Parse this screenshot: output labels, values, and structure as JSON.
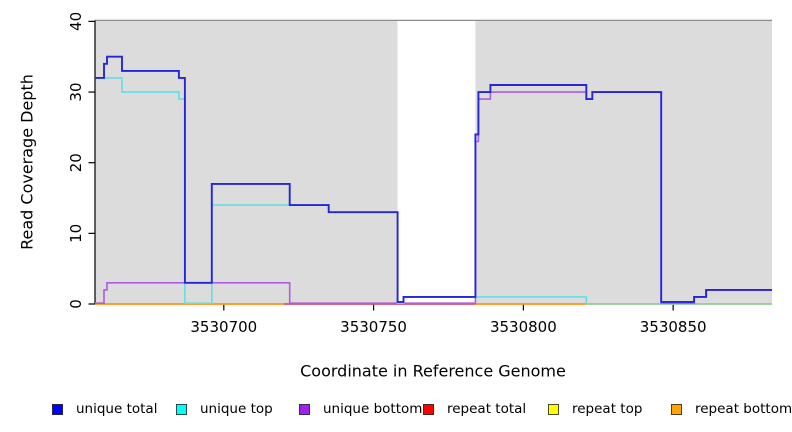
{
  "chart_data": {
    "type": "line",
    "subtype": "step-coverage",
    "title": "",
    "xlabel": "Coordinate in Reference Genome",
    "ylabel": "Read Coverage Depth",
    "x_domain": [
      3530657,
      3530883
    ],
    "y_domain": [
      0,
      40
    ],
    "x_ticks": [
      3530700,
      3530750,
      3530800,
      3530850
    ],
    "y_ticks": [
      0,
      10,
      20,
      30,
      40
    ],
    "grid": false,
    "background_shading": {
      "color": "#dcdcdc",
      "top_border_color": "#8c8c8c",
      "regions": [
        [
          3530657,
          3530758
        ],
        [
          3530784,
          3530883
        ]
      ],
      "gap_note": "white unshaded gap from 3530758 to 3530784"
    },
    "series": [
      {
        "id": "unique_total",
        "name": "unique total",
        "legend_color": "#0000ff",
        "line_color": "#2626d9",
        "points": [
          [
            3530657,
            32
          ],
          [
            3530660,
            34
          ],
          [
            3530661,
            35
          ],
          [
            3530666,
            33
          ],
          [
            3530685,
            32
          ],
          [
            3530687,
            3
          ],
          [
            3530696,
            17
          ],
          [
            3530722,
            14
          ],
          [
            3530735,
            13
          ],
          [
            3530758,
            0
          ],
          [
            3530760,
            1
          ],
          [
            3530784,
            24
          ],
          [
            3530785,
            30
          ],
          [
            3530789,
            31
          ],
          [
            3530821,
            29
          ],
          [
            3530823,
            30
          ],
          [
            3530846,
            0
          ],
          [
            3530857,
            1
          ],
          [
            3530861,
            2
          ]
        ]
      },
      {
        "id": "unique_top",
        "name": "unique top",
        "legend_color": "#00ffff",
        "line_color": "#63dee6",
        "points": [
          [
            3530657,
            32
          ],
          [
            3530666,
            30
          ],
          [
            3530685,
            29
          ],
          [
            3530687,
            0
          ],
          [
            3530696,
            14
          ],
          [
            3530735,
            13
          ],
          [
            3530758,
            0
          ],
          [
            3530760,
            1
          ],
          [
            3530821,
            0
          ]
        ],
        "draw_until": 3530821
      },
      {
        "id": "unique_bottom",
        "name": "unique bottom",
        "legend_color": "#a020f0",
        "line_color": "#ad5ce3",
        "points": [
          [
            3530657,
            0
          ],
          [
            3530660,
            2
          ],
          [
            3530661,
            3
          ],
          [
            3530722,
            0
          ],
          [
            3530784,
            23
          ],
          [
            3530785,
            29
          ],
          [
            3530789,
            30
          ],
          [
            3530821,
            29
          ],
          [
            3530823,
            30
          ],
          [
            3530846,
            0
          ],
          [
            3530857,
            1
          ],
          [
            3530861,
            2
          ]
        ]
      },
      {
        "id": "repeat_total",
        "name": "repeat total",
        "legend_color": "#ff0000",
        "line_color": "#d4536e",
        "points": [
          [
            3530720,
            0
          ]
        ],
        "draw_until": 3530784,
        "all_zero": true
      },
      {
        "id": "repeat_top",
        "name": "repeat top",
        "legend_color": "#ffff00",
        "line_color": "#ffff00",
        "points": [
          [
            3530657,
            0
          ]
        ],
        "all_zero": true,
        "hidden_under_other_zero_lines": true
      },
      {
        "id": "repeat_bottom",
        "name": "repeat bottom",
        "legend_color": "#ffa500",
        "line_color": "#ff9414",
        "points": [
          [
            3530657,
            0
          ]
        ],
        "all_zero": true
      }
    ],
    "zero_line_segments": [
      {
        "x0": 3530657,
        "x1": 3530720,
        "color": "#ff9414",
        "series": "repeat_bottom"
      },
      {
        "x0": 3530720,
        "x1": 3530784,
        "color": "#d4536e",
        "series": "repeat_total"
      },
      {
        "x0": 3530784,
        "x1": 3530821,
        "color": "#ff9414",
        "series": "repeat_bottom"
      },
      {
        "x0": 3530821,
        "x1": 3530883,
        "color": "#92cd96",
        "series": "unique_top_at_zero"
      }
    ],
    "legend": [
      {
        "label": "unique total",
        "color": "#0000ff"
      },
      {
        "label": "unique top",
        "color": "#00ffff"
      },
      {
        "label": "unique bottom",
        "color": "#a020f0"
      },
      {
        "label": "repeat total",
        "color": "#ff0000"
      },
      {
        "label": "repeat top",
        "color": "#ffff00"
      },
      {
        "label": "repeat bottom",
        "color": "#ffa500"
      }
    ],
    "legend_position": "bottom"
  }
}
